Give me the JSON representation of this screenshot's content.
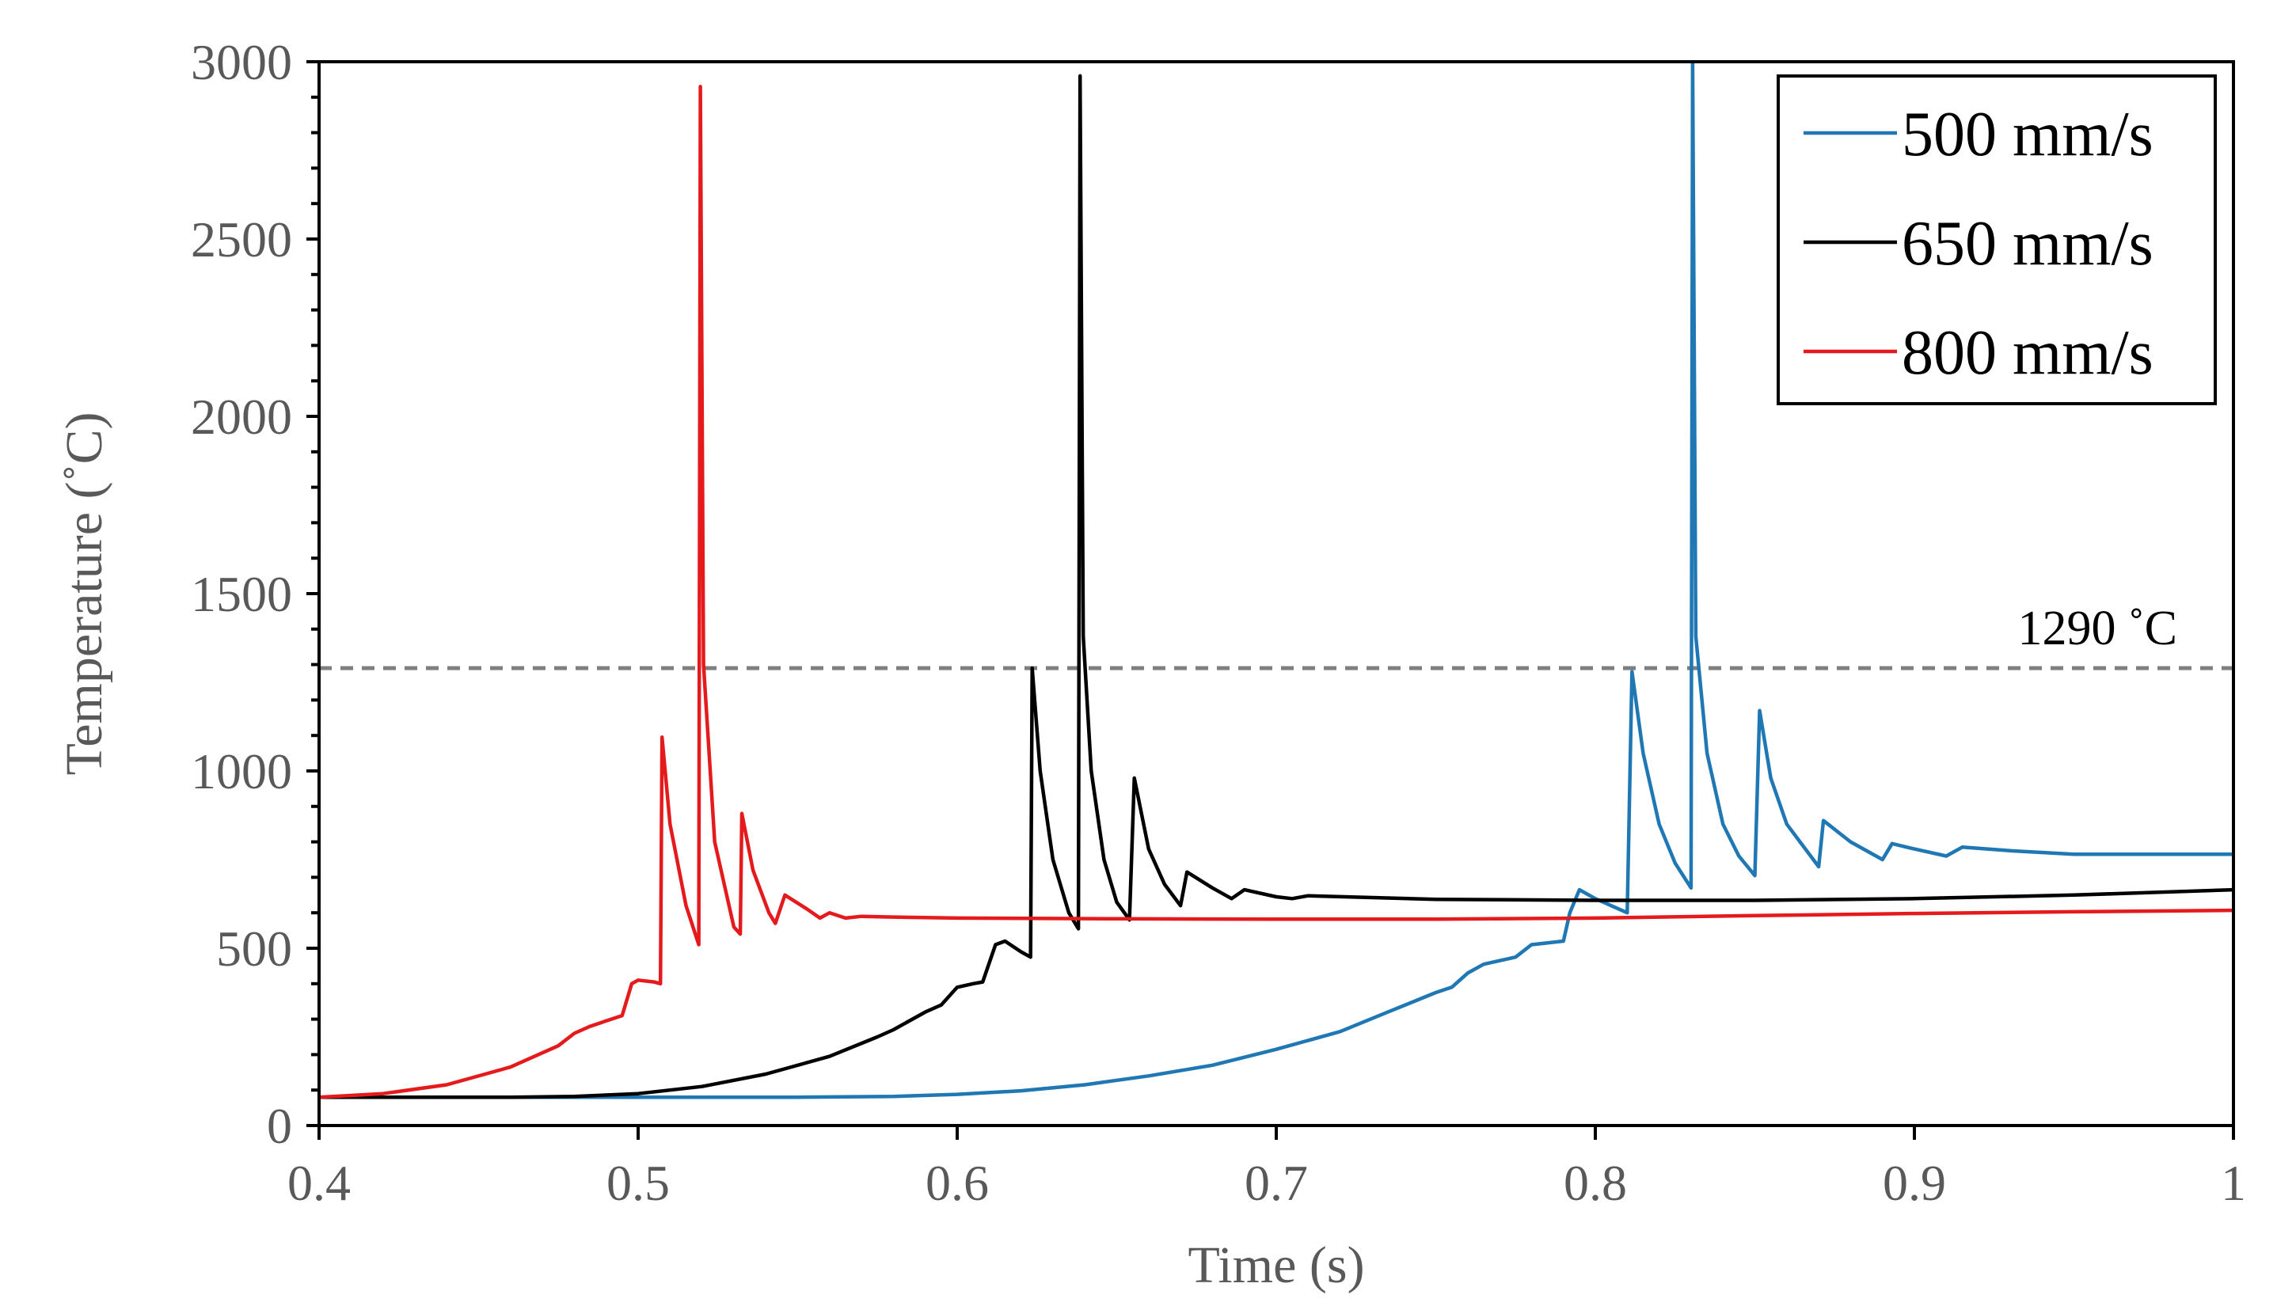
{
  "chart_data": {
    "type": "line",
    "xlabel": "Time (s)",
    "ylabel": "Temperature (˚C)",
    "xlim": [
      0.4,
      1.0
    ],
    "ylim": [
      0,
      3000
    ],
    "x_ticks": [
      0.4,
      0.5,
      0.6,
      0.7,
      0.8,
      0.9,
      1.0
    ],
    "x_tick_labels": [
      "0.4",
      "0.5",
      "0.6",
      "0.7",
      "0.8",
      "0.9",
      "1"
    ],
    "y_ticks": [
      0,
      500,
      1000,
      1500,
      2000,
      2500,
      3000
    ],
    "y_tick_labels": [
      "0",
      "500",
      "1000",
      "1500",
      "2000",
      "2500",
      "3000"
    ],
    "grid": false,
    "legend_position": "top-right",
    "reference_line": {
      "y": 1290,
      "label": "1290 ˚C",
      "color": "#7f7f7f",
      "style": "dashed"
    },
    "series": [
      {
        "name": "500 mm/s",
        "color": "#1f77b4",
        "points": [
          [
            0.4,
            80
          ],
          [
            0.5,
            80
          ],
          [
            0.55,
            80
          ],
          [
            0.58,
            82
          ],
          [
            0.6,
            88
          ],
          [
            0.62,
            98
          ],
          [
            0.64,
            115
          ],
          [
            0.66,
            140
          ],
          [
            0.68,
            170
          ],
          [
            0.7,
            215
          ],
          [
            0.72,
            265
          ],
          [
            0.735,
            320
          ],
          [
            0.75,
            375
          ],
          [
            0.755,
            390
          ],
          [
            0.76,
            430
          ],
          [
            0.765,
            455
          ],
          [
            0.775,
            475
          ],
          [
            0.78,
            510
          ],
          [
            0.79,
            520
          ],
          [
            0.792,
            600
          ],
          [
            0.795,
            665
          ],
          [
            0.8,
            640
          ],
          [
            0.81,
            600
          ],
          [
            0.8115,
            1280
          ],
          [
            0.815,
            1050
          ],
          [
            0.82,
            850
          ],
          [
            0.825,
            740
          ],
          [
            0.83,
            670
          ],
          [
            0.8305,
            3000
          ],
          [
            0.8315,
            1380
          ],
          [
            0.835,
            1050
          ],
          [
            0.84,
            850
          ],
          [
            0.845,
            760
          ],
          [
            0.85,
            705
          ],
          [
            0.8515,
            1170
          ],
          [
            0.855,
            980
          ],
          [
            0.86,
            850
          ],
          [
            0.865,
            790
          ],
          [
            0.87,
            730
          ],
          [
            0.8715,
            860
          ],
          [
            0.88,
            800
          ],
          [
            0.89,
            750
          ],
          [
            0.893,
            795
          ],
          [
            0.9,
            780
          ],
          [
            0.91,
            760
          ],
          [
            0.915,
            785
          ],
          [
            0.93,
            775
          ],
          [
            0.95,
            765
          ],
          [
            0.97,
            765
          ],
          [
            1.0,
            765
          ]
        ]
      },
      {
        "name": "650 mm/s",
        "color": "#000000",
        "points": [
          [
            0.4,
            80
          ],
          [
            0.46,
            80
          ],
          [
            0.48,
            82
          ],
          [
            0.5,
            90
          ],
          [
            0.52,
            110
          ],
          [
            0.54,
            145
          ],
          [
            0.56,
            195
          ],
          [
            0.575,
            250
          ],
          [
            0.58,
            270
          ],
          [
            0.59,
            320
          ],
          [
            0.595,
            340
          ],
          [
            0.6,
            390
          ],
          [
            0.605,
            400
          ],
          [
            0.608,
            405
          ],
          [
            0.612,
            510
          ],
          [
            0.615,
            520
          ],
          [
            0.62,
            490
          ],
          [
            0.623,
            475
          ],
          [
            0.6235,
            1290
          ],
          [
            0.626,
            1000
          ],
          [
            0.63,
            750
          ],
          [
            0.635,
            600
          ],
          [
            0.638,
            555
          ],
          [
            0.6385,
            2960
          ],
          [
            0.6395,
            1380
          ],
          [
            0.642,
            1000
          ],
          [
            0.646,
            750
          ],
          [
            0.65,
            630
          ],
          [
            0.654,
            580
          ],
          [
            0.6555,
            980
          ],
          [
            0.66,
            780
          ],
          [
            0.665,
            680
          ],
          [
            0.67,
            620
          ],
          [
            0.672,
            715
          ],
          [
            0.68,
            670
          ],
          [
            0.686,
            640
          ],
          [
            0.69,
            665
          ],
          [
            0.7,
            645
          ],
          [
            0.705,
            640
          ],
          [
            0.71,
            648
          ],
          [
            0.75,
            638
          ],
          [
            0.8,
            635
          ],
          [
            0.85,
            635
          ],
          [
            0.9,
            640
          ],
          [
            0.95,
            650
          ],
          [
            1.0,
            665
          ]
        ]
      },
      {
        "name": "800 mm/s",
        "color": "#e41a1c",
        "points": [
          [
            0.4,
            80
          ],
          [
            0.42,
            90
          ],
          [
            0.44,
            115
          ],
          [
            0.46,
            165
          ],
          [
            0.475,
            225
          ],
          [
            0.48,
            260
          ],
          [
            0.485,
            280
          ],
          [
            0.49,
            295
          ],
          [
            0.495,
            310
          ],
          [
            0.498,
            400
          ],
          [
            0.5,
            410
          ],
          [
            0.505,
            405
          ],
          [
            0.507,
            400
          ],
          [
            0.5075,
            1095
          ],
          [
            0.51,
            850
          ],
          [
            0.515,
            620
          ],
          [
            0.519,
            510
          ],
          [
            0.5195,
            2930
          ],
          [
            0.5205,
            1300
          ],
          [
            0.524,
            800
          ],
          [
            0.53,
            560
          ],
          [
            0.532,
            540
          ],
          [
            0.5325,
            880
          ],
          [
            0.536,
            720
          ],
          [
            0.541,
            600
          ],
          [
            0.543,
            570
          ],
          [
            0.546,
            650
          ],
          [
            0.553,
            610
          ],
          [
            0.557,
            585
          ],
          [
            0.56,
            600
          ],
          [
            0.565,
            585
          ],
          [
            0.57,
            590
          ],
          [
            0.58,
            588
          ],
          [
            0.6,
            585
          ],
          [
            0.65,
            583
          ],
          [
            0.7,
            582
          ],
          [
            0.75,
            582
          ],
          [
            0.8,
            585
          ],
          [
            0.85,
            592
          ],
          [
            0.9,
            598
          ],
          [
            0.95,
            603
          ],
          [
            1.0,
            607
          ]
        ]
      }
    ]
  }
}
